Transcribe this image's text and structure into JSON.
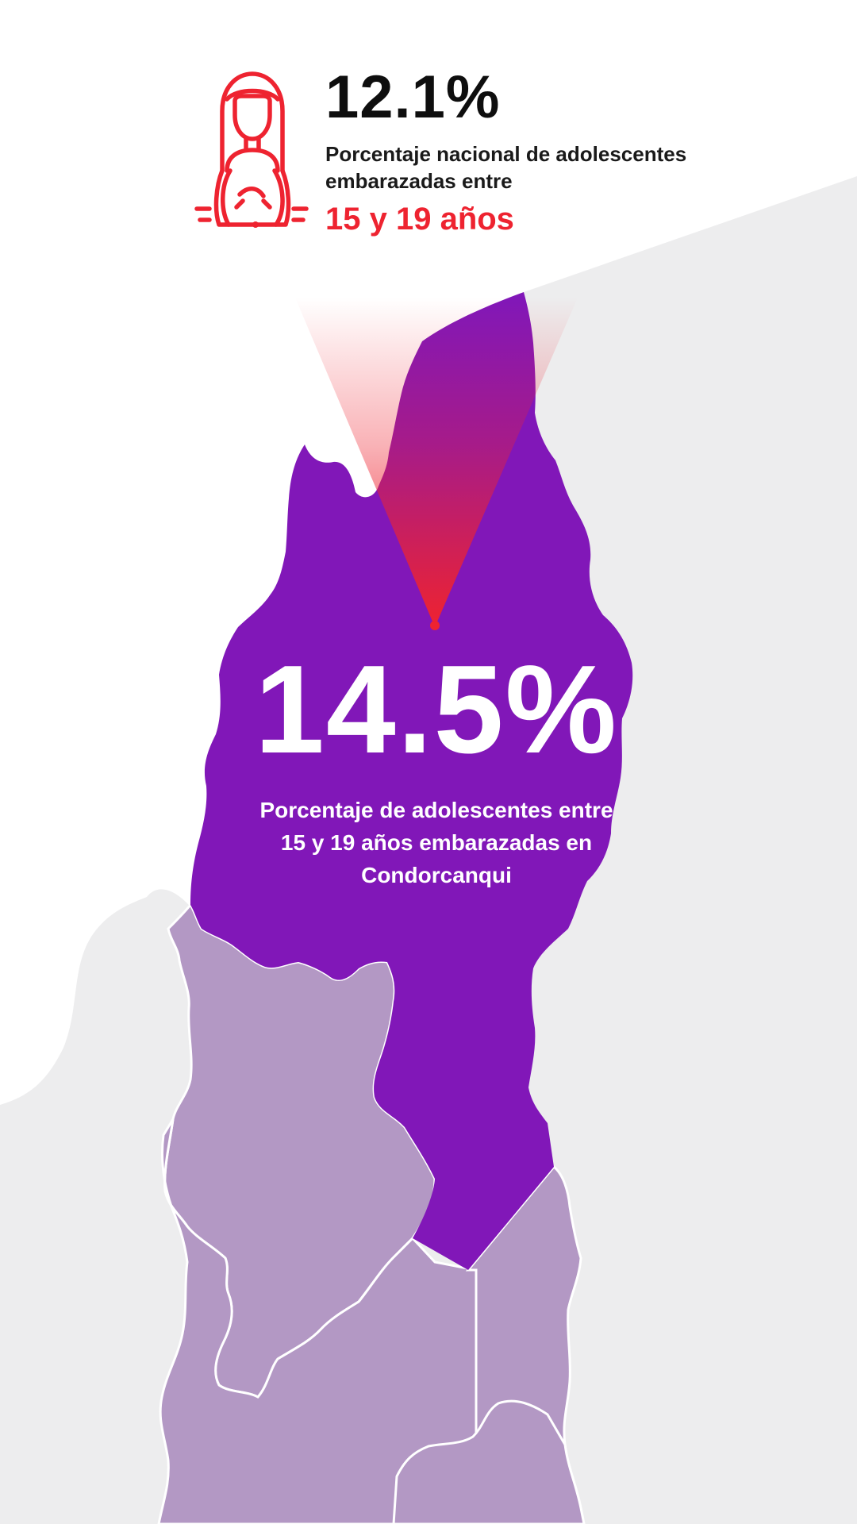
{
  "national": {
    "percent": "12.1%",
    "label": "Porcentaje nacional de adolescentes embarazadas entre",
    "age_range": "15 y 19 años",
    "icon": "pregnant-woman-icon"
  },
  "region": {
    "percent": "14.5%",
    "label": "Porcentaje de adolescentes entre 15 y 19 años embarazadas en Condorcanqui",
    "icon": "map-pointer-icon"
  },
  "colors": {
    "highlight_region": "#8117B8",
    "neighbor_regions": "#B398C4",
    "background_land": "#EDEDEE",
    "accent_red": "#EE2330",
    "text_dark": "#0E0E0E",
    "text_light": "#FFFFFF"
  }
}
